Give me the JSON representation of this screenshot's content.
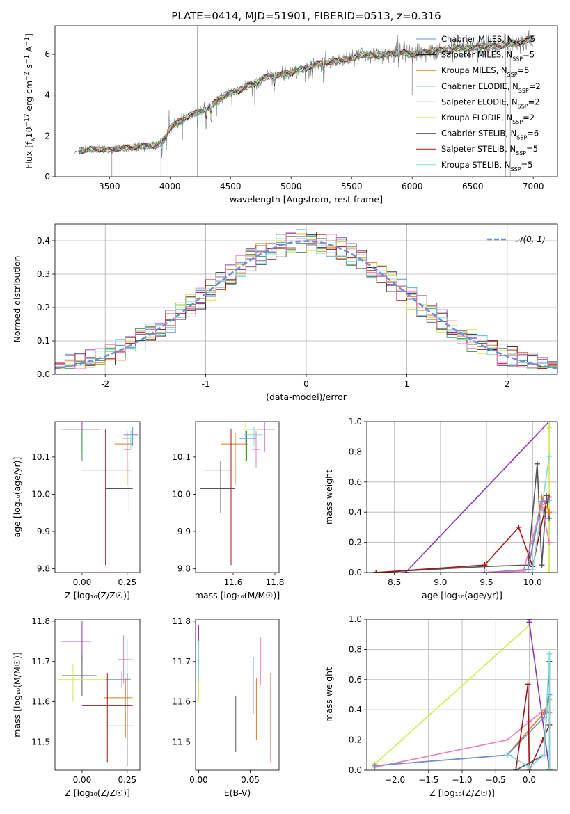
{
  "figure": {
    "title": "PLATE=0414, MJD=51901, FIBERID=0513, z=0.316",
    "palette": {
      "blue": "#6c8ed9",
      "black": "#111111",
      "orange": "#e07a1f",
      "green": "#2f9e45",
      "purple": "#8e35b5",
      "yellow": "#cfe84a",
      "gray": "#555555",
      "red": "#a01818",
      "cyan": "#7fd9d9",
      "pink": "#e67fb5",
      "spectrum": "#7f7f7f"
    }
  },
  "chart_data": [
    {
      "id": "spectrum",
      "type": "line",
      "xlabel": "wavelength [Angstrom, rest frame]",
      "ylabel": "Flux [f$_\\lambda$10$^{-17}$ erg cm$^{-2}$ s$^{-1}$ A$^{-1}$]",
      "ylabel_parts": [
        "Flux [f",
        "λ",
        "10",
        "−17",
        " erg cm",
        "−2",
        " s",
        "−1",
        " A",
        "−1",
        "]"
      ],
      "xlim": [
        3050,
        7200
      ],
      "ylim": [
        0,
        7.4
      ],
      "xticks": [
        3500,
        4000,
        4500,
        5000,
        5500,
        6000,
        6500,
        7000
      ],
      "yticks": [
        0,
        2,
        4,
        6
      ],
      "continuum": {
        "x": [
          3215,
          3300,
          3400,
          3500,
          3600,
          3700,
          3800,
          3900,
          3950,
          4000,
          4100,
          4200,
          4300,
          4400,
          4500,
          4600,
          4700,
          4800,
          4900,
          5000,
          5100,
          5200,
          5300,
          5400,
          5500,
          5600,
          5700,
          5800,
          5900,
          6000,
          6100,
          6200,
          6300,
          6400,
          6500,
          6600,
          6700,
          6800,
          6900,
          7000
        ],
        "y": [
          1.2,
          1.3,
          1.35,
          1.3,
          1.4,
          1.45,
          1.5,
          1.55,
          1.8,
          2.4,
          2.8,
          3.1,
          3.3,
          3.8,
          4.1,
          4.3,
          4.6,
          4.9,
          5.0,
          5.1,
          5.3,
          5.5,
          5.6,
          5.7,
          5.8,
          6.0,
          5.9,
          6.0,
          6.1,
          6.0,
          6.1,
          6.2,
          6.2,
          6.3,
          6.3,
          6.4,
          6.4,
          6.5,
          6.6,
          6.8
        ]
      },
      "legend": {
        "position": "right",
        "entries": [
          {
            "label": "Chabrier MILES, N",
            "sub": "SSP",
            "tail": "=5",
            "color": "#6c8ed9"
          },
          {
            "label": "Salpeter MILES, N",
            "sub": "SSP",
            "tail": "=5",
            "color": "#111111"
          },
          {
            "label": "Kroupa MILES, N",
            "sub": "SSP",
            "tail": "=5",
            "color": "#e07a1f"
          },
          {
            "label": "Chabrier ELODIE, N",
            "sub": "SSP",
            "tail": "=2",
            "color": "#2f9e45"
          },
          {
            "label": "Salpeter ELODIE, N",
            "sub": "SSP",
            "tail": "=2",
            "color": "#8e35b5"
          },
          {
            "label": "Kroupa ELODIE, N",
            "sub": "SSP",
            "tail": "=2",
            "color": "#cfe84a"
          },
          {
            "label": "Chabrier STELIB, N",
            "sub": "SSP",
            "tail": "=6",
            "color": "#555555"
          },
          {
            "label": "Salpeter STELIB, N",
            "sub": "SSP",
            "tail": "=5",
            "color": "#a01818"
          },
          {
            "label": "Kroupa STELIB, N",
            "sub": "SSP",
            "tail": "=5",
            "color": "#7fd9d9"
          }
        ]
      }
    },
    {
      "id": "residuals",
      "type": "histogram",
      "xlabel": "(data-model)/error",
      "ylabel": "Normed distribution",
      "xlim": [
        -2.5,
        2.5
      ],
      "ylim": [
        0,
        0.45
      ],
      "xticks": [
        -2,
        -1,
        0,
        1,
        2
      ],
      "yticks": [
        0.0,
        0.1,
        0.2,
        0.3,
        0.4
      ],
      "grid": true,
      "bin_width": 0.1,
      "reference_curve": {
        "label": "𝒩(0, 1)",
        "mean": 0,
        "sigma": 1,
        "color": "#6c8ed9",
        "style": "dashed"
      }
    },
    {
      "id": "age-vs-Z",
      "type": "errorbar",
      "xlabel": "Z [log₁₀(Z/Z☉)]",
      "ylabel": "age  [log₁₀(age/yr)]",
      "xlim": [
        -0.15,
        0.32
      ],
      "ylim": [
        9.79,
        10.195
      ],
      "xticks": [
        0.0,
        0.25
      ],
      "xtick_labels": [
        "0.00",
        "0.25"
      ],
      "yticks": [
        9.8,
        9.9,
        10.0,
        10.1
      ],
      "points": [
        {
          "x": 0.01,
          "xerr": [
            0.11,
            0.1
          ],
          "y": 10.175,
          "yerr": [
            0.09,
            0.02
          ],
          "color": "#cfe84a"
        },
        {
          "x": 0.0,
          "xerr": [
            0.12,
            0.1
          ],
          "y": 10.175,
          "yerr": [
            0.06,
            0.02
          ],
          "color": "#8e35b5"
        },
        {
          "x": 0.0,
          "xerr": [
            0.01,
            0.01
          ],
          "y": 10.14,
          "yerr": [
            0.05,
            0.03
          ],
          "color": "#2f9e45"
        },
        {
          "x": 0.28,
          "xerr": [
            0.05,
            0.03
          ],
          "y": 10.16,
          "yerr": [
            0.03,
            0.02
          ],
          "color": "#6c8ed9"
        },
        {
          "x": 0.27,
          "xerr": [
            0.05,
            0.02
          ],
          "y": 10.15,
          "yerr": [
            0.03,
            0.02
          ],
          "color": "#7fd9d9"
        },
        {
          "x": 0.25,
          "xerr": [
            0.07,
            0.03
          ],
          "y": 10.135,
          "yerr": [
            0.11,
            0.03
          ],
          "color": "#e07a1f"
        },
        {
          "x": 0.25,
          "xerr": [
            0.02,
            0.02
          ],
          "y": 10.12,
          "yerr": [
            0.05,
            0.05
          ],
          "color": "#e67fb5"
        },
        {
          "x": 0.13,
          "xerr": [
            0.13,
            0.15
          ],
          "y": 10.065,
          "yerr": [
            0.255,
            0.11
          ],
          "color": "#a01818"
        },
        {
          "x": 0.26,
          "xerr": [
            0.13,
            0.02
          ],
          "y": 10.015,
          "yerr": [
            0.065,
            0.075
          ],
          "color": "#555555"
        }
      ]
    },
    {
      "id": "age-vs-mass",
      "type": "errorbar",
      "xlabel": "mass [log₁₀(M/M☉)]",
      "ylabel": "",
      "xlim": [
        11.42,
        11.82
      ],
      "ylim": [
        9.79,
        10.195
      ],
      "xticks": [
        11.6,
        11.8
      ],
      "yticks": [
        9.8,
        9.9,
        10.0,
        10.1
      ],
      "points": [
        {
          "x": 11.75,
          "xerr": [
            0.07,
            0.05
          ],
          "y": 10.175,
          "yerr": [
            0.06,
            0.02
          ],
          "color": "#8e35b5"
        },
        {
          "x": 11.66,
          "xerr": [
            0.02,
            0.06
          ],
          "y": 10.175,
          "yerr": [
            0.09,
            0.02
          ],
          "color": "#cfe84a"
        },
        {
          "x": 11.665,
          "xerr": [
            0.01,
            0.01
          ],
          "y": 10.14,
          "yerr": [
            0.05,
            0.03
          ],
          "color": "#2f9e45"
        },
        {
          "x": 11.7,
          "xerr": [
            0.05,
            0.04
          ],
          "y": 10.16,
          "yerr": [
            0.03,
            0.02
          ],
          "color": "#7fd9d9"
        },
        {
          "x": 11.66,
          "xerr": [
            0.03,
            0.05
          ],
          "y": 10.15,
          "yerr": [
            0.02,
            0.02
          ],
          "color": "#6c8ed9"
        },
        {
          "x": 11.61,
          "xerr": [
            0.07,
            0.06
          ],
          "y": 10.135,
          "yerr": [
            0.11,
            0.03
          ],
          "color": "#e07a1f"
        },
        {
          "x": 11.71,
          "xerr": [
            0.02,
            0.02
          ],
          "y": 10.12,
          "yerr": [
            0.05,
            0.05
          ],
          "color": "#e67fb5"
        },
        {
          "x": 11.59,
          "xerr": [
            0.13,
            0.0
          ],
          "y": 10.065,
          "yerr": [
            0.255,
            0.11
          ],
          "color": "#a01818"
        },
        {
          "x": 11.54,
          "xerr": [
            0.1,
            0.07
          ],
          "y": 10.015,
          "yerr": [
            0.065,
            0.075
          ],
          "color": "#555555"
        }
      ]
    },
    {
      "id": "weight-vs-age",
      "type": "line",
      "xlabel": "age  [log₁₀(age/yr)]",
      "ylabel": "mass weight",
      "xlim": [
        8.2,
        10.27
      ],
      "ylim": [
        0,
        1.0
      ],
      "xticks": [
        8.5,
        9.0,
        9.5,
        10.0
      ],
      "xtick_labels": [
        "8.5",
        "9.0",
        "9.5",
        "10.0"
      ],
      "yticks": [
        0.0,
        0.2,
        0.4,
        0.6,
        0.8,
        1.0
      ],
      "grid": true,
      "series": [
        {
          "color": "#8e35b5",
          "x": [
            8.62,
            10.18
          ],
          "y": [
            0.0,
            1.0
          ]
        },
        {
          "color": "#cfe84a",
          "x": [
            10.18,
            10.18,
            10.18
          ],
          "y": [
            0.0,
            0.96,
            1.0
          ]
        },
        {
          "color": "#555555",
          "x": [
            8.3,
            9.48,
            9.95,
            10.05,
            10.1,
            10.15,
            10.18
          ],
          "y": [
            0.0,
            0.04,
            0.05,
            0.72,
            0.05,
            0.51,
            0.36
          ]
        },
        {
          "color": "#a01818",
          "x": [
            8.3,
            9.48,
            9.85,
            10.0,
            10.15,
            10.18
          ],
          "y": [
            0.0,
            0.05,
            0.3,
            0.04,
            0.47,
            0.5
          ]
        },
        {
          "color": "#7fd9d9",
          "x": [
            9.48,
            10.0,
            10.1,
            10.18
          ],
          "y": [
            0.0,
            0.02,
            0.43,
            0.77
          ]
        },
        {
          "color": "#e07a1f",
          "x": [
            9.48,
            9.95,
            10.1,
            10.18
          ],
          "y": [
            0.0,
            0.02,
            0.5,
            0.4
          ]
        },
        {
          "color": "#6c8ed9",
          "x": [
            9.48,
            9.95,
            10.1,
            10.18
          ],
          "y": [
            0.0,
            0.02,
            0.47,
            0.48
          ]
        },
        {
          "color": "#e67fb5",
          "x": [
            9.48,
            9.9,
            10.1,
            10.18
          ],
          "y": [
            0.0,
            0.01,
            0.45,
            0.2
          ]
        }
      ]
    },
    {
      "id": "mass-vs-Z",
      "type": "errorbar",
      "xlabel": "Z [log₁₀(Z/Z☉)]",
      "ylabel": "mass [log₁₀(M/M☉)]",
      "xlim": [
        -0.15,
        0.32
      ],
      "ylim": [
        11.43,
        11.805
      ],
      "xticks": [
        0.0,
        0.25
      ],
      "xtick_labels": [
        "0.00",
        "0.25"
      ],
      "yticks": [
        11.5,
        11.6,
        11.7,
        11.8
      ],
      "points": [
        {
          "x": 0.0,
          "xerr": [
            0.12,
            0.05
          ],
          "y": 11.75,
          "yerr": [
            0.05,
            0.05
          ],
          "color": "#8e35b5"
        },
        {
          "x": 0.0,
          "xerr": [
            0.11,
            0.08
          ],
          "y": 11.665,
          "yerr": [
            0.05,
            0.05
          ],
          "color": "#555555"
        },
        {
          "x": -0.05,
          "xerr": [
            0.08,
            0.18
          ],
          "y": 11.655,
          "yerr": [
            0.055,
            0.04
          ],
          "color": "#cfe84a"
        },
        {
          "x": 0.25,
          "xerr": [
            0.05,
            0.03
          ],
          "y": 11.705,
          "yerr": [
            0.06,
            0.05
          ],
          "color": "#7fd9d9"
        },
        {
          "x": 0.23,
          "xerr": [
            0.03,
            0.03
          ],
          "y": 11.705,
          "yerr": [
            0.06,
            0.06
          ],
          "color": "#e67fb5"
        },
        {
          "x": 0.22,
          "xerr": [
            0.09,
            0.05
          ],
          "y": 11.655,
          "yerr": [
            0.02,
            0.02
          ],
          "color": "#6c8ed9"
        },
        {
          "x": 0.24,
          "xerr": [
            0.12,
            0.04
          ],
          "y": 11.61,
          "yerr": [
            0.1,
            0.05
          ],
          "color": "#e07a1f"
        },
        {
          "x": 0.14,
          "xerr": [
            0.14,
            0.14
          ],
          "y": 11.59,
          "yerr": [
            0.14,
            0.08
          ],
          "color": "#a01818"
        },
        {
          "x": 0.25,
          "xerr": [
            0.12,
            0.04
          ],
          "y": 11.54,
          "yerr": [
            0.1,
            0.13
          ],
          "color": "#555555"
        }
      ]
    },
    {
      "id": "mass-vs-EBV",
      "type": "errorbar",
      "xlabel": "E(B-V)",
      "ylabel": "",
      "xlim": [
        -0.003,
        0.078
      ],
      "ylim": [
        11.43,
        11.805
      ],
      "xticks": [
        0.0,
        0.05
      ],
      "xtick_labels": [
        "0.00",
        "0.05"
      ],
      "yticks": [
        11.5,
        11.6,
        11.7,
        11.8
      ],
      "points": [
        {
          "x": 0.0,
          "xerr": [
            0,
            0
          ],
          "y": 11.75,
          "yerr": [
            0.04,
            0.04
          ],
          "color": "#8e35b5"
        },
        {
          "x": 0.0,
          "xerr": [
            0,
            0
          ],
          "y": 11.7,
          "yerr": [
            0.1,
            0.05
          ],
          "color": "#cfe84a"
        },
        {
          "x": 0.0,
          "xerr": [
            0,
            0
          ],
          "y": 11.7,
          "yerr": [
            0.05,
            0.05
          ],
          "color": "#7fd9d9"
        },
        {
          "x": 0.036,
          "xerr": [
            0,
            0
          ],
          "y": 11.545,
          "yerr": [
            0.07,
            0.07
          ],
          "color": "#555555"
        },
        {
          "x": 0.053,
          "xerr": [
            0,
            0
          ],
          "y": 11.64,
          "yerr": [
            0.07,
            0.07
          ],
          "color": "#6c8ed9"
        },
        {
          "x": 0.056,
          "xerr": [
            0,
            0
          ],
          "y": 11.57,
          "yerr": [
            0.065,
            0.09
          ],
          "color": "#e07a1f"
        },
        {
          "x": 0.06,
          "xerr": [
            0,
            0
          ],
          "y": 11.7,
          "yerr": [
            0.06,
            0.06
          ],
          "color": "#e67fb5"
        },
        {
          "x": 0.07,
          "xerr": [
            0,
            0
          ],
          "y": 11.56,
          "yerr": [
            0.11,
            0.11
          ],
          "color": "#a01818"
        }
      ]
    },
    {
      "id": "weight-vs-Z",
      "type": "line",
      "xlabel": "Z [log₁₀(Z/Z☉)]",
      "ylabel": "mass weight",
      "xlim": [
        -2.42,
        0.42
      ],
      "ylim": [
        0,
        1.0
      ],
      "xticks": [
        -2.0,
        -1.5,
        -1.0,
        -0.5,
        0.0
      ],
      "xtick_labels": [
        "−2.0",
        "−1.5",
        "−1.0",
        "−0.5",
        "0.0"
      ],
      "yticks": [
        0.0,
        0.2,
        0.4,
        0.6,
        0.8,
        1.0
      ],
      "grid": true,
      "series": [
        {
          "color": "#cfe84a",
          "x": [
            -2.3,
            0.0,
            0.0
          ],
          "y": [
            0.04,
            0.96,
            1.0
          ]
        },
        {
          "color": "#8e35b5",
          "x": [
            0.0,
            0.0,
            0.3
          ],
          "y": [
            1.0,
            0.98,
            0.0
          ]
        },
        {
          "color": "#e67fb5",
          "x": [
            -2.3,
            -0.33,
            0.0,
            0.22,
            0.3
          ],
          "y": [
            0.02,
            0.2,
            0.32,
            0.4,
            0.38
          ]
        },
        {
          "color": "#e07a1f",
          "x": [
            -2.3,
            -0.33,
            0.22,
            0.3
          ],
          "y": [
            0.03,
            0.1,
            0.38,
            0.47
          ]
        },
        {
          "color": "#6c8ed9",
          "x": [
            -2.3,
            -0.33,
            0.22,
            0.3
          ],
          "y": [
            0.03,
            0.1,
            0.35,
            0.5
          ]
        },
        {
          "color": "#a01818",
          "x": [
            -0.2,
            -0.02,
            0.0,
            0.2,
            0.3
          ],
          "y": [
            0.0,
            0.57,
            0.0,
            0.2,
            0.3
          ]
        },
        {
          "color": "#555555",
          "x": [
            -0.2,
            0.22,
            0.3,
            0.3
          ],
          "y": [
            0.0,
            0.1,
            0.72,
            0.0
          ]
        },
        {
          "color": "#7fd9d9",
          "x": [
            -0.33,
            -0.3,
            0.0,
            0.22,
            0.3,
            0.3
          ],
          "y": [
            0.1,
            0.1,
            0.02,
            0.1,
            0.77,
            0.0
          ]
        }
      ]
    }
  ]
}
